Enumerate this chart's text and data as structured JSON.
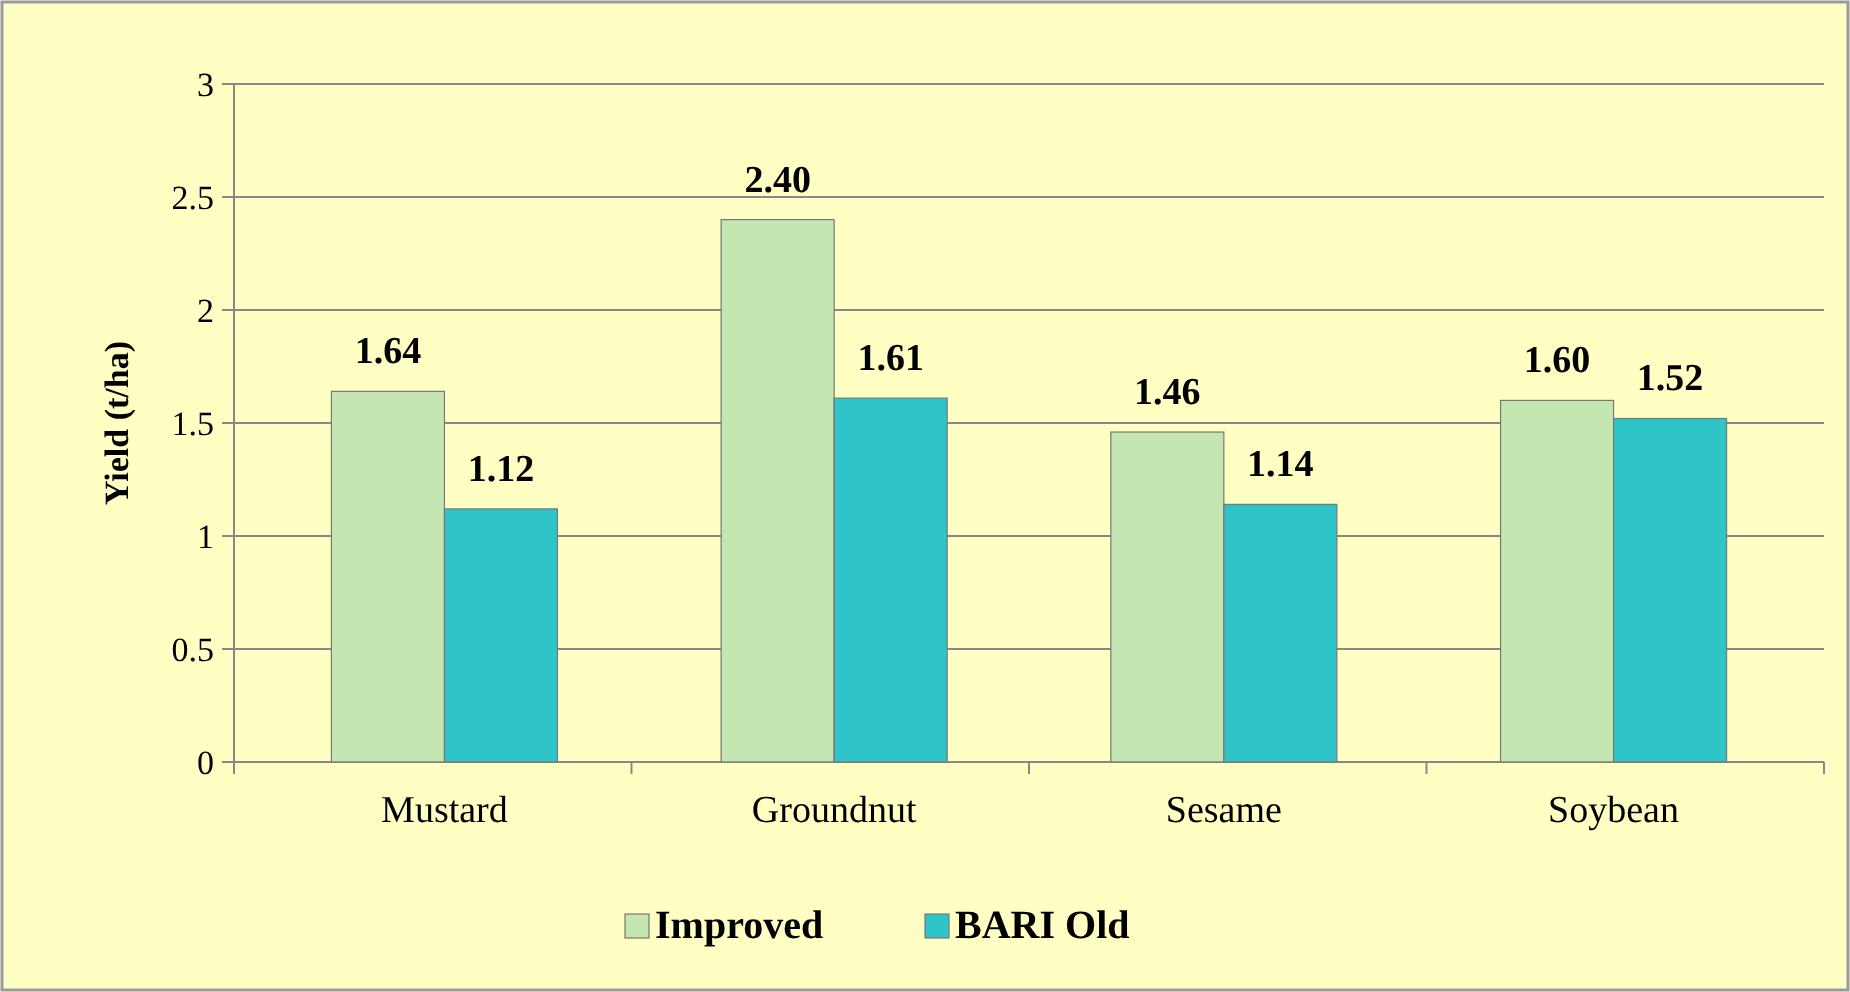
{
  "chart_data": {
    "type": "bar",
    "ylabel": "Yield (t/ha)",
    "categories": [
      "Mustard",
      "Groundnut",
      "Sesame",
      "Soybean"
    ],
    "series": [
      {
        "name": "Improved",
        "color": "#c4e6b0",
        "values": [
          1.64,
          2.4,
          1.46,
          1.6
        ],
        "value_labels": [
          "1.64",
          "2.40",
          "1.46",
          "1.60"
        ]
      },
      {
        "name": "BARI Old",
        "color": "#2ec4c8",
        "values": [
          1.12,
          1.61,
          1.14,
          1.52
        ],
        "value_labels": [
          "1.12",
          "1.61",
          "1.14",
          "1.52"
        ]
      }
    ],
    "ylim": [
      0,
      3
    ],
    "yticks": [
      0,
      0.5,
      1,
      1.5,
      2,
      2.5,
      3
    ],
    "grid": "y",
    "legend": "bottom"
  }
}
